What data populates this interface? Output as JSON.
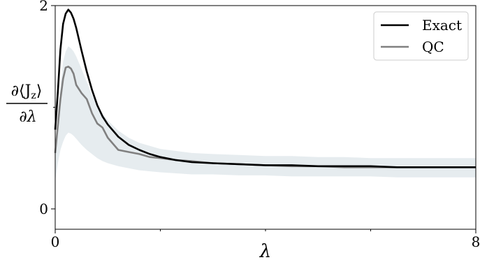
{
  "chart_data": {
    "type": "line",
    "title": "",
    "xlabel": "λ",
    "ylabel_num": "∂⟨J",
    "ylabel_sub": "z",
    "ylabel_close": "⟩",
    "ylabel_den": "∂λ",
    "xlim": [
      0,
      8
    ],
    "ylim": [
      -0.2,
      2.0
    ],
    "xticks": [
      0,
      8
    ],
    "xtick_labels": [
      "0",
      "8"
    ],
    "yticks": [
      0,
      2
    ],
    "ytick_labels": [
      "0",
      "2"
    ],
    "minor_xticks": [
      2,
      4,
      6
    ],
    "minor_yticks": [
      1
    ],
    "grid": false,
    "legend_position": "top-right",
    "x": [
      0,
      0.05,
      0.1,
      0.15,
      0.2,
      0.25,
      0.3,
      0.35,
      0.4,
      0.5,
      0.6,
      0.7,
      0.8,
      0.9,
      1.0,
      1.2,
      1.4,
      1.6,
      1.8,
      2.0,
      2.3,
      2.6,
      3.0,
      3.5,
      4.0,
      4.5,
      5.0,
      5.5,
      6.0,
      6.5,
      7.0,
      7.5,
      8.0
    ],
    "band_lower": [
      0.28,
      0.45,
      0.58,
      0.66,
      0.72,
      0.75,
      0.74,
      0.72,
      0.69,
      0.63,
      0.58,
      0.54,
      0.5,
      0.47,
      0.45,
      0.42,
      0.4,
      0.38,
      0.37,
      0.36,
      0.35,
      0.34,
      0.34,
      0.33,
      0.33,
      0.32,
      0.32,
      0.32,
      0.32,
      0.31,
      0.31,
      0.31,
      0.31
    ],
    "band_upper": [
      0.55,
      0.9,
      1.2,
      1.45,
      1.55,
      1.6,
      1.58,
      1.55,
      1.5,
      1.38,
      1.25,
      1.12,
      1.02,
      0.94,
      0.87,
      0.77,
      0.7,
      0.65,
      0.62,
      0.59,
      0.57,
      0.55,
      0.54,
      0.53,
      0.52,
      0.52,
      0.51,
      0.51,
      0.5,
      0.5,
      0.5,
      0.5,
      0.5
    ],
    "series": [
      {
        "name": "Exact",
        "color": "#000000",
        "y": [
          0.78,
          1.15,
          1.57,
          1.82,
          1.92,
          1.96,
          1.93,
          1.87,
          1.78,
          1.56,
          1.35,
          1.17,
          1.02,
          0.91,
          0.83,
          0.71,
          0.63,
          0.58,
          0.54,
          0.51,
          0.48,
          0.46,
          0.45,
          0.44,
          0.43,
          0.43,
          0.42,
          0.42,
          0.42,
          0.41,
          0.41,
          0.41,
          0.41
        ]
      },
      {
        "name": "QC",
        "color": "#808080",
        "y": [
          0.55,
          0.82,
          1.08,
          1.28,
          1.39,
          1.4,
          1.38,
          1.33,
          1.22,
          1.14,
          1.08,
          0.94,
          0.84,
          0.8,
          0.7,
          0.58,
          0.56,
          0.54,
          0.51,
          0.5,
          0.48,
          0.47,
          0.45,
          0.44,
          0.43,
          0.42,
          0.42,
          0.41,
          0.41,
          0.41,
          0.41,
          0.41,
          0.41
        ]
      }
    ]
  }
}
